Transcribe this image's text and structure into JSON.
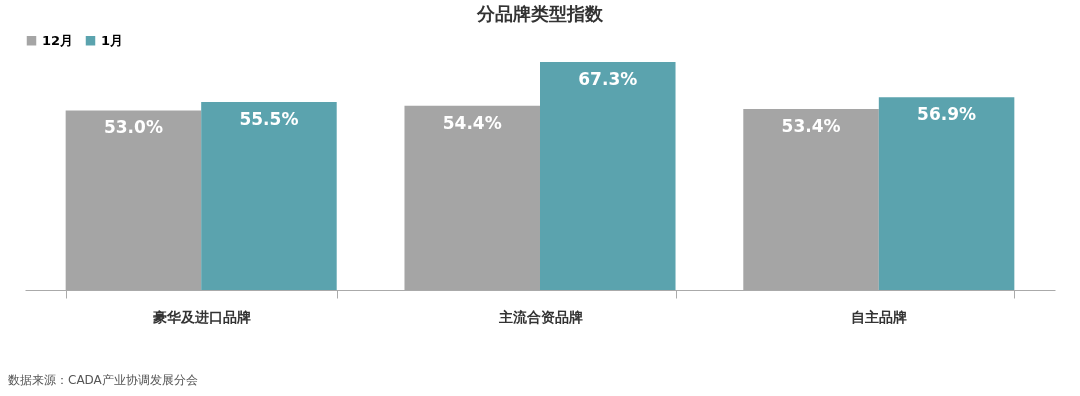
{
  "chart_data": {
    "type": "bar",
    "title": "分品牌类型指数",
    "categories": [
      "豪华及进口品牌",
      "主流合资品牌",
      "自主品牌"
    ],
    "series": [
      {
        "name": "12月",
        "color": "#a5a5a5",
        "values": [
          53.0,
          54.4,
          53.4
        ],
        "value_labels": [
          "53.0%",
          "54.4%",
          "53.4%"
        ]
      },
      {
        "name": "1月",
        "color": "#5ba3ae",
        "values": [
          55.5,
          67.3,
          56.9
        ],
        "value_labels": [
          "55.5%",
          "67.3%",
          "56.9%"
        ]
      }
    ],
    "legend": "top",
    "grid": false,
    "annotations": [
      "数据来源：CADA产业协调发展分会"
    ]
  }
}
